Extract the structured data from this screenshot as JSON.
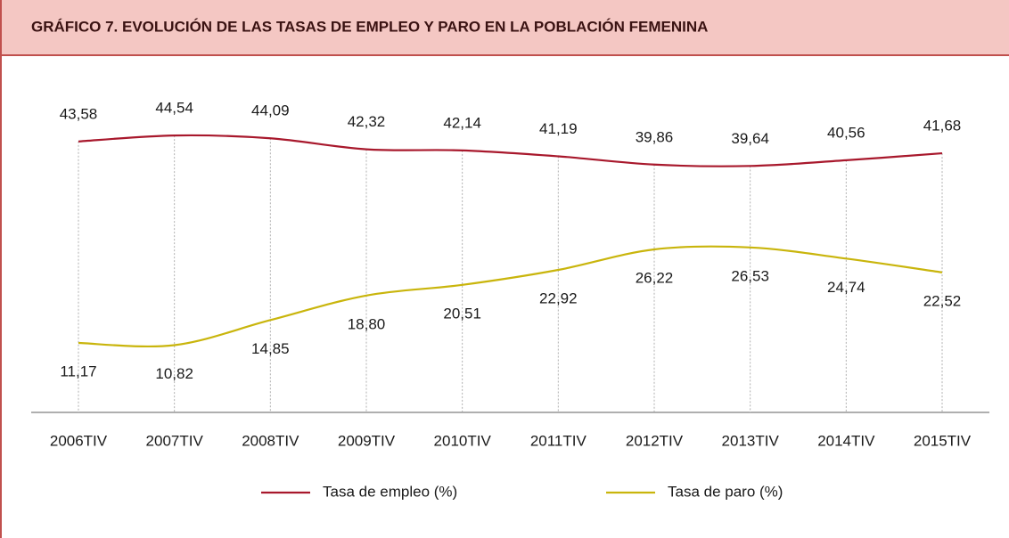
{
  "chart_data": {
    "type": "line",
    "title": "GRÁFICO  7. EVOLUCIÓN DE LAS TASAS DE EMPLEO Y PARO EN LA POBLACIÓN FEMENINA",
    "categories": [
      "2006TIV",
      "2007TIV",
      "2008TIV",
      "2009TIV",
      "2010TIV",
      "2011TIV",
      "2012TIV",
      "2013TIV",
      "2014TIV",
      "2015TIV"
    ],
    "series": [
      {
        "name": "Tasa de empleo (%)",
        "color": "#a8182c",
        "values": [
          43.58,
          44.54,
          44.09,
          42.32,
          42.14,
          41.19,
          39.86,
          39.64,
          40.56,
          41.68
        ],
        "value_labels": [
          "43,58",
          "44,54",
          "44,09",
          "42,32",
          "42,14",
          "41,19",
          "39,86",
          "39,64",
          "40,56",
          "41,68"
        ]
      },
      {
        "name": "Tasa de paro (%)",
        "color": "#c9b50c",
        "values": [
          11.17,
          10.82,
          14.85,
          18.8,
          20.51,
          22.92,
          26.22,
          26.53,
          24.74,
          22.52
        ],
        "value_labels": [
          "11,17",
          "10,82",
          "14,85",
          "18,80",
          "20,51",
          "22,92",
          "26,22",
          "26,53",
          "24,74",
          "22,52"
        ]
      }
    ],
    "ylim": [
      0,
      50
    ],
    "x_grid": true,
    "smooth": true,
    "legend": "bottom"
  }
}
